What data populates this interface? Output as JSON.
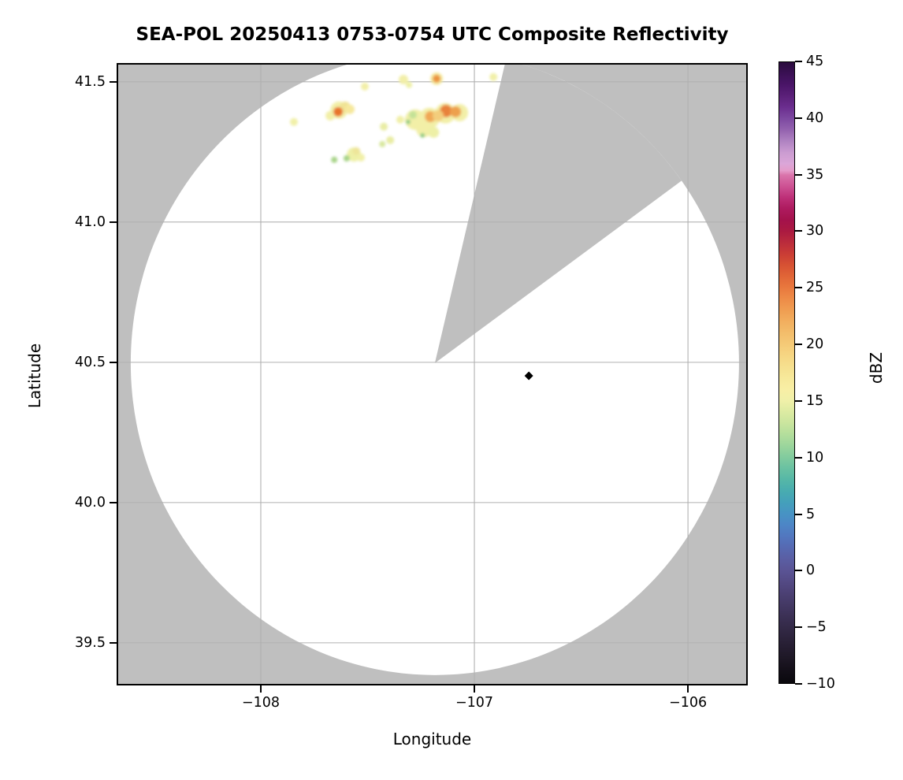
{
  "title": "SEA-POL 20250413 0753-0754 UTC Composite Reflectivity",
  "axes": {
    "x": {
      "label": "Longitude",
      "ticks": [
        {
          "label": "−108",
          "value": -108
        },
        {
          "label": "−107",
          "value": -107
        },
        {
          "label": "−106",
          "value": -106
        }
      ]
    },
    "y": {
      "label": "Latitude",
      "ticks": [
        {
          "label": "41.5",
          "value": 41.5
        },
        {
          "label": "41.0",
          "value": 41.0
        },
        {
          "label": "40.5",
          "value": 40.5
        },
        {
          "label": "40.0",
          "value": 40.0
        },
        {
          "label": "39.5",
          "value": 39.5
        }
      ]
    }
  },
  "colorbar": {
    "label": "dBZ",
    "min": -10,
    "max": 45,
    "ticks": [
      {
        "label": "45",
        "value": 45
      },
      {
        "label": "40",
        "value": 40
      },
      {
        "label": "35",
        "value": 35
      },
      {
        "label": "30",
        "value": 30
      },
      {
        "label": "25",
        "value": 25
      },
      {
        "label": "20",
        "value": 20
      },
      {
        "label": "15",
        "value": 15
      },
      {
        "label": "10",
        "value": 10
      },
      {
        "label": "5",
        "value": 5
      },
      {
        "label": "0",
        "value": 0
      },
      {
        "label": "−5",
        "value": -5
      },
      {
        "label": "−10",
        "value": -10
      }
    ],
    "stops": [
      {
        "v": 45,
        "c": "#2a0b3d"
      },
      {
        "v": 44,
        "c": "#3a1054"
      },
      {
        "v": 43,
        "c": "#4a1568"
      },
      {
        "v": 42,
        "c": "#5b2079"
      },
      {
        "v": 41,
        "c": "#6b2e8f"
      },
      {
        "v": 40,
        "c": "#7d49a1"
      },
      {
        "v": 39,
        "c": "#9463af"
      },
      {
        "v": 38,
        "c": "#b083c2"
      },
      {
        "v": 37,
        "c": "#cb9cd1"
      },
      {
        "v": 36,
        "c": "#dba6d8"
      },
      {
        "v": 35.4,
        "c": "#e49cca"
      },
      {
        "v": 35,
        "c": "#da74ab"
      },
      {
        "v": 34,
        "c": "#cd5193"
      },
      {
        "v": 33,
        "c": "#bd2f77"
      },
      {
        "v": 32,
        "c": "#ad1a5e"
      },
      {
        "v": 31,
        "c": "#a4124b"
      },
      {
        "v": 30,
        "c": "#ab1a41"
      },
      {
        "v": 29,
        "c": "#bb2c3c"
      },
      {
        "v": 28,
        "c": "#ca3d35"
      },
      {
        "v": 27,
        "c": "#d75233"
      },
      {
        "v": 26,
        "c": "#e16637"
      },
      {
        "v": 25,
        "c": "#e9793e"
      },
      {
        "v": 24,
        "c": "#ee8c48"
      },
      {
        "v": 23,
        "c": "#f09e52"
      },
      {
        "v": 22,
        "c": "#f2af5f"
      },
      {
        "v": 21,
        "c": "#f3bd6b"
      },
      {
        "v": 20,
        "c": "#f5ca77"
      },
      {
        "v": 19,
        "c": "#f6d683"
      },
      {
        "v": 18,
        "c": "#f6e08f"
      },
      {
        "v": 17,
        "c": "#f7e99b"
      },
      {
        "v": 16,
        "c": "#f8efa5"
      },
      {
        "v": 15,
        "c": "#f0f0a9"
      },
      {
        "v": 14,
        "c": "#dceba2"
      },
      {
        "v": 13,
        "c": "#c9e59e"
      },
      {
        "v": 12,
        "c": "#b3de9c"
      },
      {
        "v": 11,
        "c": "#9bd59c"
      },
      {
        "v": 10,
        "c": "#81cb9e"
      },
      {
        "v": 9,
        "c": "#69c1a2"
      },
      {
        "v": 8,
        "c": "#55b7a7"
      },
      {
        "v": 7,
        "c": "#48acb0"
      },
      {
        "v": 6,
        "c": "#44a0bb"
      },
      {
        "v": 5,
        "c": "#4793c4"
      },
      {
        "v": 4,
        "c": "#4d85c6"
      },
      {
        "v": 3,
        "c": "#5277bf"
      },
      {
        "v": 2,
        "c": "#5669b2"
      },
      {
        "v": 1,
        "c": "#5a5ea3"
      },
      {
        "v": 0,
        "c": "#5a5495"
      },
      {
        "v": -1,
        "c": "#544a85"
      },
      {
        "v": -2,
        "c": "#4c4175"
      },
      {
        "v": -3,
        "c": "#443965"
      },
      {
        "v": -4,
        "c": "#3c3156"
      },
      {
        "v": -5,
        "c": "#342a48"
      },
      {
        "v": -6,
        "c": "#2c233b"
      },
      {
        "v": -7,
        "c": "#241c2f"
      },
      {
        "v": -8,
        "c": "#1c1623"
      },
      {
        "v": -9,
        "c": "#120e17"
      },
      {
        "v": -10,
        "c": "#0a080d"
      }
    ]
  },
  "colors": {
    "figure_bg": "#ffffff",
    "no_data_gray": "#bfbfbf",
    "scan_fill": "#ffffff",
    "grid": "#b0b0b0",
    "spine": "#000000",
    "marker": "#000000"
  },
  "chart_data": {
    "type": "heatmap",
    "subtype": "radar-composite-reflectivity-ppi",
    "title": "SEA-POL 20250413 0753-0754 UTC Composite Reflectivity",
    "xlabel": "Longitude",
    "ylabel": "Latitude",
    "xlim": [
      -108.675,
      -105.72
    ],
    "ylim": [
      39.348,
      41.567
    ],
    "grid": true,
    "legend_position": "right-colorbar",
    "colorbar_units": "dBZ",
    "colorbar_range": [
      -10,
      45
    ],
    "scan_area": {
      "center_lon": -107.185,
      "center_lat": 40.497,
      "radius_lon_deg": 1.424,
      "radius_lat_deg": 1.112,
      "blocked_sector_azimuth_deg": [
        13.5,
        54.2
      ]
    },
    "site_marker": {
      "lon": -106.745,
      "lat": 40.452,
      "shape": "diamond"
    },
    "echoes": [
      {
        "lon": -107.634,
        "lat": 41.399,
        "r": 11,
        "dbz": 18,
        "c": "#f2efa7"
      },
      {
        "lon": -107.605,
        "lat": 41.41,
        "r": 7,
        "dbz": 21,
        "c": "#f0e394"
      },
      {
        "lon": -107.675,
        "lat": 41.379,
        "r": 6,
        "dbz": 17,
        "c": "#f2efa7"
      },
      {
        "lon": -107.583,
        "lat": 41.402,
        "r": 6,
        "dbz": 19,
        "c": "#f6e89c"
      },
      {
        "lon": -107.638,
        "lat": 41.393,
        "r": 6,
        "dbz": 28,
        "c": "#e8742c"
      },
      {
        "lon": -107.845,
        "lat": 41.357,
        "r": 5,
        "dbz": 16,
        "c": "#f1f0a8"
      },
      {
        "lon": -107.513,
        "lat": 41.483,
        "r": 5,
        "dbz": 17,
        "c": "#f2efa7"
      },
      {
        "lon": -107.332,
        "lat": 41.508,
        "r": 6,
        "dbz": 17,
        "c": "#f2efa7"
      },
      {
        "lon": -107.306,
        "lat": 41.489,
        "r": 4,
        "dbz": 16,
        "c": "#eef0a6"
      },
      {
        "lon": -107.177,
        "lat": 41.511,
        "r": 8,
        "dbz": 18,
        "c": "#f4eba0"
      },
      {
        "lon": -107.177,
        "lat": 41.511,
        "r": 5,
        "dbz": 24,
        "c": "#eb9440"
      },
      {
        "lon": -106.911,
        "lat": 41.517,
        "r": 5,
        "dbz": 16,
        "c": "#f1f0a8"
      },
      {
        "lon": -107.424,
        "lat": 41.34,
        "r": 5,
        "dbz": 15,
        "c": "#e9eda4"
      },
      {
        "lon": -107.394,
        "lat": 41.292,
        "r": 5,
        "dbz": 15,
        "c": "#e9eda4"
      },
      {
        "lon": -107.347,
        "lat": 41.365,
        "r": 5,
        "dbz": 16,
        "c": "#f1f0a8"
      },
      {
        "lon": -107.277,
        "lat": 41.365,
        "r": 13,
        "dbz": 18,
        "c": "#f2efa7"
      },
      {
        "lon": -107.21,
        "lat": 41.371,
        "r": 13,
        "dbz": 18,
        "c": "#f2efa7"
      },
      {
        "lon": -107.136,
        "lat": 41.388,
        "r": 13,
        "dbz": 18,
        "c": "#f2efa7"
      },
      {
        "lon": -107.07,
        "lat": 41.39,
        "r": 11,
        "dbz": 18,
        "c": "#f2efa7"
      },
      {
        "lon": -107.236,
        "lat": 41.331,
        "r": 10,
        "dbz": 17,
        "c": "#f2efa7"
      },
      {
        "lon": -107.191,
        "lat": 41.32,
        "r": 7,
        "dbz": 16,
        "c": "#eef0a6"
      },
      {
        "lon": -107.288,
        "lat": 41.382,
        "r": 5,
        "dbz": 12,
        "c": "#c4e297"
      },
      {
        "lon": -107.206,
        "lat": 41.376,
        "r": 7,
        "dbz": 23,
        "c": "#f0a855"
      },
      {
        "lon": -107.133,
        "lat": 41.396,
        "r": 8,
        "dbz": 27,
        "c": "#e8823a"
      },
      {
        "lon": -107.088,
        "lat": 41.393,
        "r": 7,
        "dbz": 24,
        "c": "#eda04e"
      },
      {
        "lon": -107.17,
        "lat": 41.379,
        "r": 7,
        "dbz": 21,
        "c": "#f3cd7c"
      },
      {
        "lon": -107.31,
        "lat": 41.357,
        "r": 3,
        "dbz": 13,
        "c": "#93cc85"
      },
      {
        "lon": -107.243,
        "lat": 41.309,
        "r": 3,
        "dbz": 13,
        "c": "#93cc85"
      },
      {
        "lon": -107.564,
        "lat": 41.241,
        "r": 9,
        "dbz": 16,
        "c": "#eef0a6"
      },
      {
        "lon": -107.553,
        "lat": 41.253,
        "r": 5,
        "dbz": 19,
        "c": "#eee59a"
      },
      {
        "lon": -107.598,
        "lat": 41.227,
        "r": 4,
        "dbz": 13,
        "c": "#a8d489"
      },
      {
        "lon": -107.656,
        "lat": 41.222,
        "r": 4,
        "dbz": 13,
        "c": "#a8d489"
      },
      {
        "lon": -107.531,
        "lat": 41.23,
        "r": 5,
        "dbz": 16,
        "c": "#f1f0a8"
      },
      {
        "lon": -107.431,
        "lat": 41.278,
        "r": 4,
        "dbz": 14,
        "c": "#d8e89e"
      }
    ]
  }
}
